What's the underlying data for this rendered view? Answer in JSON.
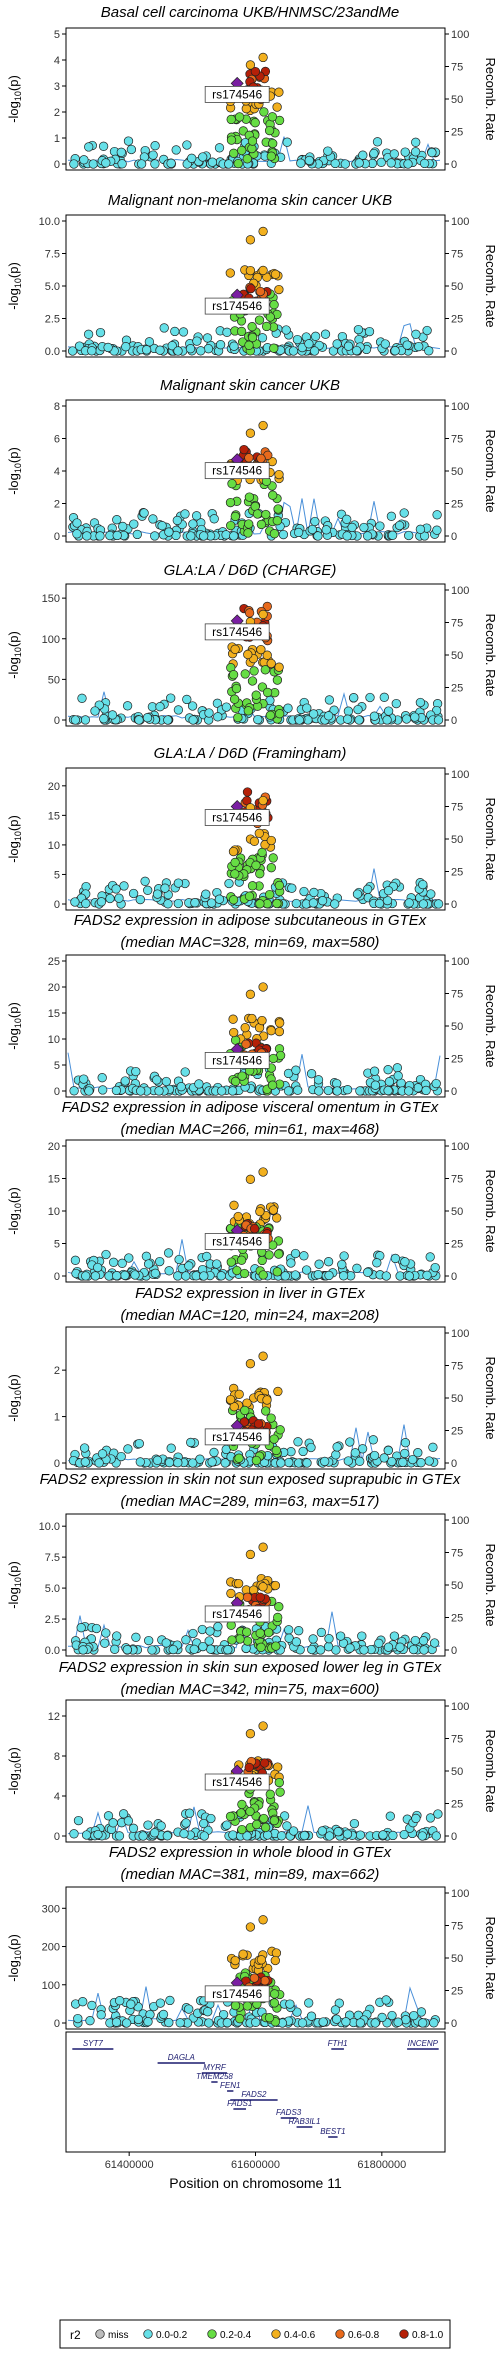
{
  "figure": {
    "xlabel": "Position on chromosome 11",
    "x_ticks": [
      61400000,
      61600000,
      61800000
    ],
    "xlim": [
      61300000,
      61900000
    ],
    "lead_snp": "rs174546",
    "left_axis_label": "-log10(p)",
    "right_axis_label": "Recomb. Rate"
  },
  "legend": {
    "title": "r2",
    "items": [
      {
        "label": "miss",
        "color": "#bdbdbd"
      },
      {
        "label": "0.0-0.2",
        "color": "#66e0e8"
      },
      {
        "label": "0.2-0.4",
        "color": "#66dd44"
      },
      {
        "label": "0.4-0.6",
        "color": "#f2b01e"
      },
      {
        "label": "0.6-0.8",
        "color": "#e86a1c"
      },
      {
        "label": "0.8-1.0",
        "color": "#b52008"
      }
    ],
    "lead_color": "#7a1fa2"
  },
  "chart_data": [
    {
      "type": "scatter",
      "title": "Basal cell carcinoma UKB/HNMSC/23andMe",
      "ylim": [
        0,
        5
      ],
      "y_ticks": [
        0,
        1,
        2,
        3,
        4,
        5
      ],
      "peak": 4.1,
      "lead_y": 3.1,
      "recomb_ticks": [
        0,
        25,
        50,
        75,
        100
      ]
    },
    {
      "type": "scatter",
      "title": "Malignant non-melanoma skin cancer UKB",
      "ylim": [
        0,
        10
      ],
      "y_ticks": [
        0.0,
        2.5,
        5.0,
        7.5,
        10.0
      ],
      "peak": 9.2,
      "lead_y": 4.3,
      "recomb_ticks": [
        0,
        25,
        50,
        75,
        100
      ]
    },
    {
      "type": "scatter",
      "title": "Malignant skin cancer UKB",
      "ylim": [
        0,
        8
      ],
      "y_ticks": [
        0,
        2,
        4,
        6,
        8
      ],
      "peak": 6.8,
      "lead_y": 4.7,
      "recomb_ticks": [
        0,
        25,
        50,
        75,
        100
      ]
    },
    {
      "type": "scatter",
      "title": "GLA:LA / D6D (CHARGE)",
      "ylim": [
        0,
        160
      ],
      "y_ticks": [
        0,
        50,
        100,
        150
      ],
      "peak": 130,
      "lead_y": 122,
      "recomb_ticks": [
        0,
        25,
        50,
        75,
        100
      ]
    },
    {
      "type": "scatter",
      "title": "GLA:LA / D6D (Framingham)",
      "ylim": [
        0,
        22
      ],
      "y_ticks": [
        0,
        5,
        10,
        15,
        20
      ],
      "peak": 17.5,
      "lead_y": 16.5,
      "recomb_ticks": [
        0,
        25,
        50,
        75,
        100
      ]
    },
    {
      "type": "scatter",
      "title": "FADS2 expression in adipose subcutaneous in GTEx",
      "subtitle": "(median MAC=328, min=69, max=580)",
      "ylim": [
        0,
        25
      ],
      "y_ticks": [
        0,
        5,
        10,
        15,
        20,
        25
      ],
      "peak": 20,
      "lead_y": 8,
      "recomb_ticks": [
        0,
        25,
        50,
        75,
        100
      ]
    },
    {
      "type": "scatter",
      "title": "FADS2 expression in adipose visceral omentum in GTEx",
      "subtitle": "(median MAC=266, min=61, max=468)",
      "ylim": [
        0,
        20
      ],
      "y_ticks": [
        0,
        5,
        10,
        15,
        20
      ],
      "peak": 16,
      "lead_y": 7,
      "recomb_ticks": [
        0,
        25,
        50,
        75,
        100
      ]
    },
    {
      "type": "scatter",
      "title": "FADS2 expression in liver in GTEx",
      "subtitle": "(median MAC=120, min=24, max=208)",
      "ylim": [
        0,
        2.8
      ],
      "y_ticks": [
        0,
        1,
        2
      ],
      "peak": 2.3,
      "lead_y": 0.8,
      "recomb_ticks": [
        0,
        25,
        50,
        75,
        100
      ]
    },
    {
      "type": "scatter",
      "title": "FADS2 expression in skin not sun exposed suprapubic in GTEx",
      "subtitle": "(median MAC=289, min=63, max=517)",
      "ylim": [
        0,
        10.5
      ],
      "y_ticks": [
        0.0,
        2.5,
        5.0,
        7.5,
        10.0
      ],
      "peak": 8.3,
      "lead_y": 3.8,
      "recomb_ticks": [
        0,
        25,
        50,
        75,
        100
      ]
    },
    {
      "type": "scatter",
      "title": "FADS2 expression in skin sun exposed lower leg in GTEx",
      "subtitle": "(median MAC=342, min=75, max=600)",
      "ylim": [
        0,
        13
      ],
      "y_ticks": [
        0,
        4,
        8,
        12
      ],
      "peak": 11,
      "lead_y": 6.5,
      "recomb_ticks": [
        0,
        25,
        50,
        75,
        100
      ]
    },
    {
      "type": "scatter",
      "title": "FADS2 expression in whole blood in GTEx",
      "subtitle": "(median MAC=381, min=89, max=662)",
      "ylim": [
        0,
        340
      ],
      "y_ticks": [
        0,
        100,
        200,
        300
      ],
      "peak": 270,
      "lead_y": 105,
      "recomb_ticks": [
        0,
        25,
        50,
        75,
        100
      ]
    }
  ],
  "genes": [
    {
      "name": "SYT7",
      "start": 61310000,
      "end": 61375000,
      "row": 0
    },
    {
      "name": "FTH1",
      "start": 61720000,
      "end": 61740000,
      "row": 0
    },
    {
      "name": "INCENP",
      "start": 61840000,
      "end": 61890000,
      "row": 0
    },
    {
      "name": "DAGLA",
      "start": 61445000,
      "end": 61520000,
      "row": 1
    },
    {
      "name": "MYRF",
      "start": 61515000,
      "end": 61555000,
      "row": 2
    },
    {
      "name": "TMEM258",
      "start": 61530000,
      "end": 61540000,
      "row": 3
    },
    {
      "name": "FEN1",
      "start": 61555000,
      "end": 61565000,
      "row": 4
    },
    {
      "name": "FADS2",
      "start": 61560000,
      "end": 61635000,
      "row": 5
    },
    {
      "name": "FADS1",
      "start": 61565000,
      "end": 61585000,
      "row": 6
    },
    {
      "name": "FADS3",
      "start": 61640000,
      "end": 61665000,
      "row": 7
    },
    {
      "name": "RAB3IL1",
      "start": 61665000,
      "end": 61690000,
      "row": 8
    },
    {
      "name": "BEST1",
      "start": 61715000,
      "end": 61730000,
      "row": 9
    }
  ]
}
